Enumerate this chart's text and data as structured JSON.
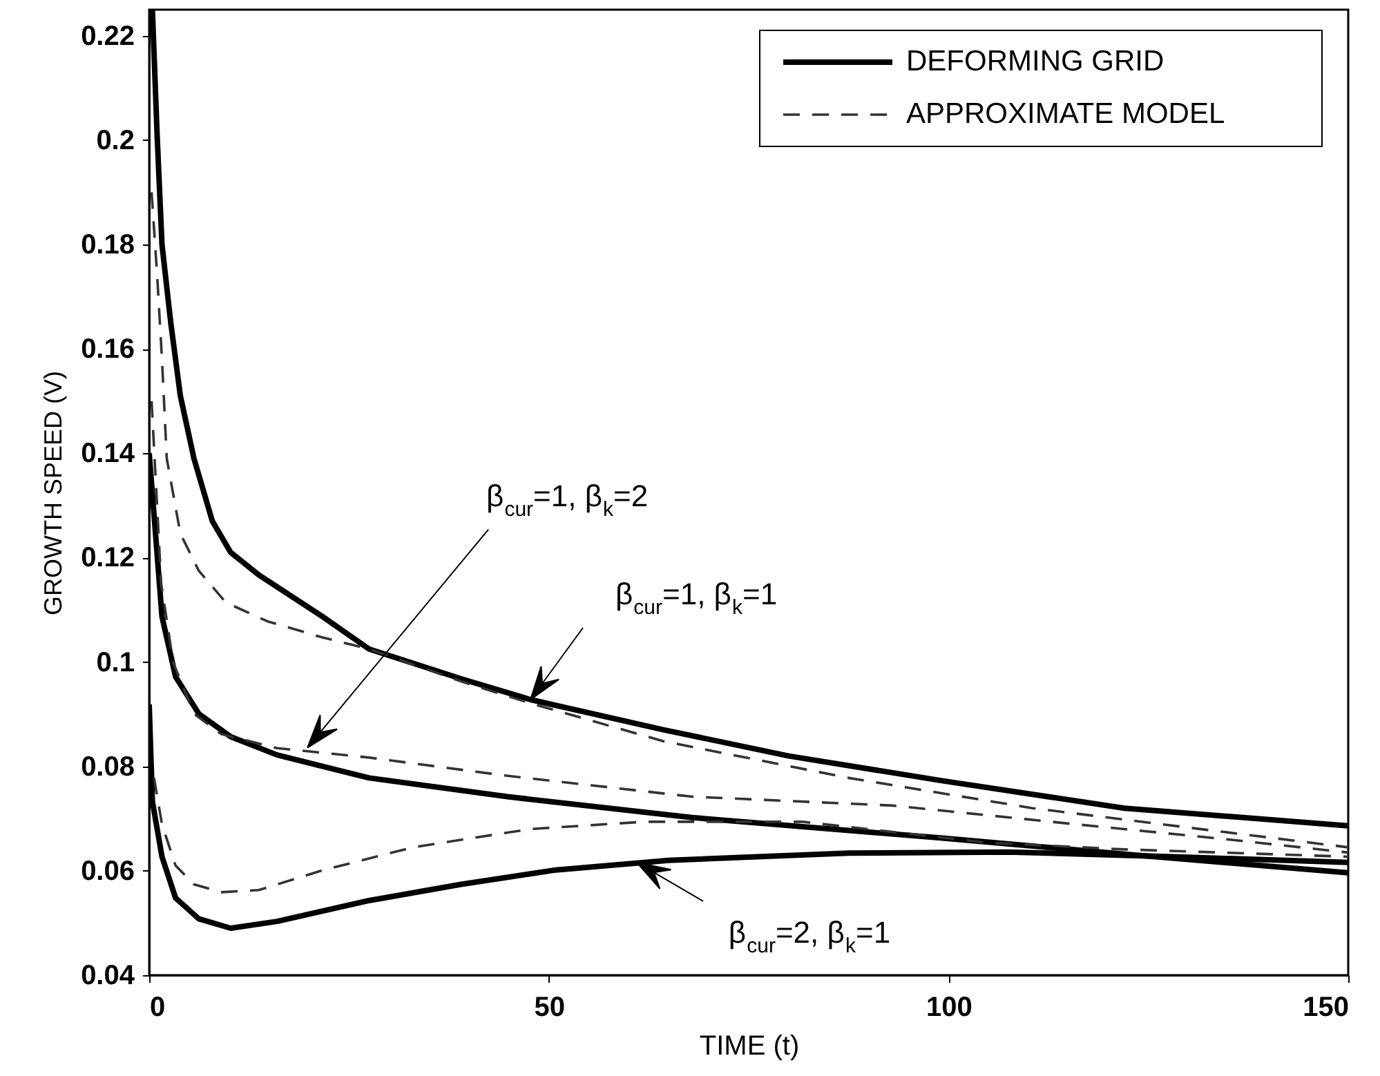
{
  "chart_data": {
    "type": "line",
    "xlabel": "TIME (t)",
    "ylabel": "GROWTH SPEED (V)",
    "xlim": [
      0,
      150
    ],
    "xticks": [
      0,
      50,
      100,
      150
    ],
    "ylim": [
      0.04,
      0.225
    ],
    "yticks": [
      0.04,
      0.06,
      0.08,
      0.1,
      0.12,
      0.14,
      0.16,
      0.18,
      0.2,
      0.22
    ],
    "grid": false,
    "legend": "top right",
    "marker": "none",
    "series": [
      {
        "name": "DEFORMING GRID",
        "color": "#000000",
        "line_style": "solid",
        "x": [
          0.4,
          1,
          1.6,
          2.7,
          3.9,
          5.6,
          7.9,
          10.2,
          13.7,
          21.7,
          27.5,
          39,
          47.7,
          64.4,
          80,
          99,
          122,
          150
        ],
        "values": [
          0.225,
          0.2007,
          0.18,
          0.165,
          0.151,
          0.139,
          0.127,
          0.121,
          0.1167,
          0.1087,
          0.1025,
          0.0968,
          0.0928,
          0.087,
          0.082,
          0.0773,
          0.072,
          0.0686
        ]
      },
      {
        "name": "APPROXIMATE MODEL",
        "color": "#333333",
        "line_style": "dashed",
        "x": [
          0.3,
          1,
          1.6,
          2.2,
          3.9,
          6.2,
          9.6,
          14.8,
          21.7,
          27.5,
          39,
          47.7,
          64.4,
          87.5,
          110.5,
          133.6,
          150
        ],
        "values": [
          0.19,
          0.174,
          0.158,
          0.139,
          0.1246,
          0.1175,
          0.1114,
          0.1078,
          0.1047,
          0.1025,
          0.0963,
          0.0921,
          0.0848,
          0.0778,
          0.072,
          0.0676,
          0.0645
        ]
      },
      {
        "color": "#000000",
        "line_style": "solid",
        "x": [
          0,
          0.7,
          1.6,
          3.3,
          6.2,
          10.2,
          16,
          27.5,
          44.8,
          67.9,
          99,
          122,
          150
        ],
        "values": [
          0.14,
          0.1264,
          0.1087,
          0.0972,
          0.0901,
          0.0857,
          0.0822,
          0.0778,
          0.0742,
          0.0702,
          0.0663,
          0.0632,
          0.0596
        ]
      },
      {
        "color": "#333333",
        "line_style": "dashed",
        "x": [
          0.3,
          1.5,
          3,
          5.6,
          9,
          16,
          27.5,
          44.8,
          67.9,
          93,
          116,
          135,
          150
        ],
        "values": [
          0.15,
          0.115,
          0.0999,
          0.0901,
          0.0862,
          0.0835,
          0.0817,
          0.0782,
          0.0742,
          0.0725,
          0.0689,
          0.066,
          0.0635
        ]
      },
      {
        "color": "#000000",
        "line_style": "solid",
        "x": [
          0,
          0.4,
          1.6,
          3.3,
          6.2,
          10.2,
          16,
          27.5,
          39,
          50.6,
          65,
          87.5,
          107.5,
          128,
          150
        ],
        "values": [
          0.0919,
          0.0733,
          0.0627,
          0.0548,
          0.0508,
          0.049,
          0.0503,
          0.0543,
          0.0574,
          0.0601,
          0.062,
          0.0634,
          0.0636,
          0.0627,
          0.0616
        ]
      },
      {
        "color": "#333333",
        "line_style": "dashed",
        "x": [
          0.6,
          1.6,
          3.3,
          5.6,
          9,
          13.7,
          21.7,
          33,
          47.7,
          62,
          81.7,
          104.8,
          122,
          150
        ],
        "values": [
          0.0778,
          0.0689,
          0.061,
          0.0574,
          0.0559,
          0.0563,
          0.0601,
          0.0645,
          0.068,
          0.0694,
          0.0694,
          0.0654,
          0.0641,
          0.0627
        ]
      }
    ],
    "annotations": [
      {
        "text": "β$_{cur}$=1, β$_{k}$=2",
        "x": 19.8,
        "y": 0.0836
      },
      {
        "text": "β$_{cur}$=1, β$_{k}$=1",
        "x": 47.7,
        "y": 0.0928
      },
      {
        "text": "β$_{cur}$=2, β$_{k}$=1",
        "x": 61,
        "y": 0.0616
      }
    ]
  }
}
